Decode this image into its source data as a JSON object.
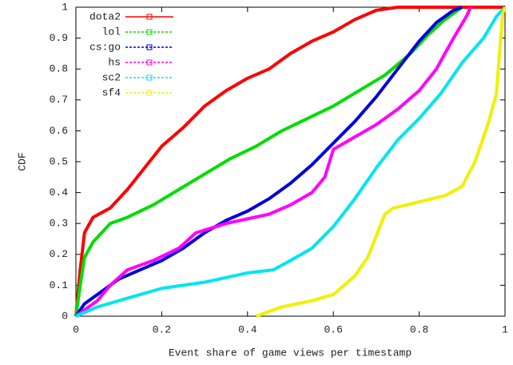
{
  "chart_data": {
    "type": "line",
    "xlabel": "Event share of game views per timestamp",
    "ylabel": "CDF",
    "xlim": [
      0,
      1
    ],
    "ylim": [
      0,
      1
    ],
    "xticks": [
      0,
      0.2,
      0.4,
      0.6,
      0.8,
      1
    ],
    "yticks": [
      0,
      0.1,
      0.2,
      0.3,
      0.4,
      0.5,
      0.6,
      0.7,
      0.8,
      0.9,
      1
    ],
    "grid": false,
    "legend": "top-left",
    "series": [
      {
        "name": "dota2",
        "color": "#ff0000",
        "x": [
          0,
          0.01,
          0.02,
          0.04,
          0.08,
          0.12,
          0.16,
          0.2,
          0.25,
          0.3,
          0.35,
          0.4,
          0.45,
          0.5,
          0.55,
          0.6,
          0.65,
          0.7,
          0.75,
          1
        ],
        "values": [
          0,
          0.15,
          0.27,
          0.32,
          0.35,
          0.41,
          0.48,
          0.55,
          0.61,
          0.68,
          0.73,
          0.77,
          0.8,
          0.85,
          0.89,
          0.92,
          0.96,
          0.99,
          1,
          1
        ]
      },
      {
        "name": "lol",
        "color": "#00dd00",
        "x": [
          0,
          0.01,
          0.02,
          0.04,
          0.08,
          0.12,
          0.18,
          0.24,
          0.3,
          0.36,
          0.42,
          0.48,
          0.54,
          0.6,
          0.66,
          0.72,
          0.78,
          0.82,
          0.86,
          0.9
        ],
        "values": [
          0,
          0.1,
          0.19,
          0.24,
          0.3,
          0.32,
          0.36,
          0.41,
          0.46,
          0.51,
          0.55,
          0.6,
          0.64,
          0.68,
          0.73,
          0.78,
          0.85,
          0.91,
          0.96,
          1
        ]
      },
      {
        "name": "cs:go",
        "color": "#0000dd",
        "x": [
          0,
          0.02,
          0.05,
          0.1,
          0.15,
          0.2,
          0.25,
          0.3,
          0.35,
          0.4,
          0.45,
          0.5,
          0.55,
          0.6,
          0.65,
          0.7,
          0.75,
          0.8,
          0.84,
          0.88,
          0.9
        ],
        "values": [
          0,
          0.04,
          0.07,
          0.12,
          0.15,
          0.18,
          0.22,
          0.27,
          0.31,
          0.34,
          0.38,
          0.43,
          0.49,
          0.56,
          0.63,
          0.71,
          0.8,
          0.89,
          0.95,
          0.99,
          1
        ]
      },
      {
        "name": "hs",
        "color": "#ff00ff",
        "x": [
          0,
          0.02,
          0.05,
          0.08,
          0.12,
          0.18,
          0.24,
          0.28,
          0.35,
          0.45,
          0.5,
          0.55,
          0.58,
          0.6,
          0.65,
          0.7,
          0.75,
          0.8,
          0.84,
          0.88,
          0.91,
          0.92
        ],
        "values": [
          0,
          0.02,
          0.05,
          0.1,
          0.15,
          0.18,
          0.22,
          0.27,
          0.3,
          0.33,
          0.36,
          0.4,
          0.45,
          0.54,
          0.58,
          0.62,
          0.67,
          0.73,
          0.8,
          0.9,
          0.97,
          1
        ]
      },
      {
        "name": "sc2",
        "color": "#00e5ee",
        "x": [
          0,
          0.05,
          0.1,
          0.15,
          0.2,
          0.3,
          0.4,
          0.46,
          0.5,
          0.55,
          0.6,
          0.65,
          0.7,
          0.75,
          0.8,
          0.85,
          0.9,
          0.95,
          0.98,
          1
        ],
        "values": [
          0,
          0.03,
          0.05,
          0.07,
          0.09,
          0.11,
          0.14,
          0.15,
          0.18,
          0.22,
          0.29,
          0.38,
          0.48,
          0.57,
          0.64,
          0.72,
          0.82,
          0.9,
          0.97,
          1
        ]
      },
      {
        "name": "sf4",
        "color": "#f0f000",
        "x": [
          0.42,
          0.48,
          0.55,
          0.6,
          0.65,
          0.68,
          0.72,
          0.74,
          0.8,
          0.86,
          0.9,
          0.93,
          0.96,
          0.98,
          0.99,
          0.995,
          1
        ],
        "values": [
          0,
          0.03,
          0.05,
          0.07,
          0.13,
          0.19,
          0.33,
          0.35,
          0.37,
          0.39,
          0.42,
          0.5,
          0.62,
          0.72,
          0.9,
          0.98,
          1
        ]
      }
    ]
  }
}
